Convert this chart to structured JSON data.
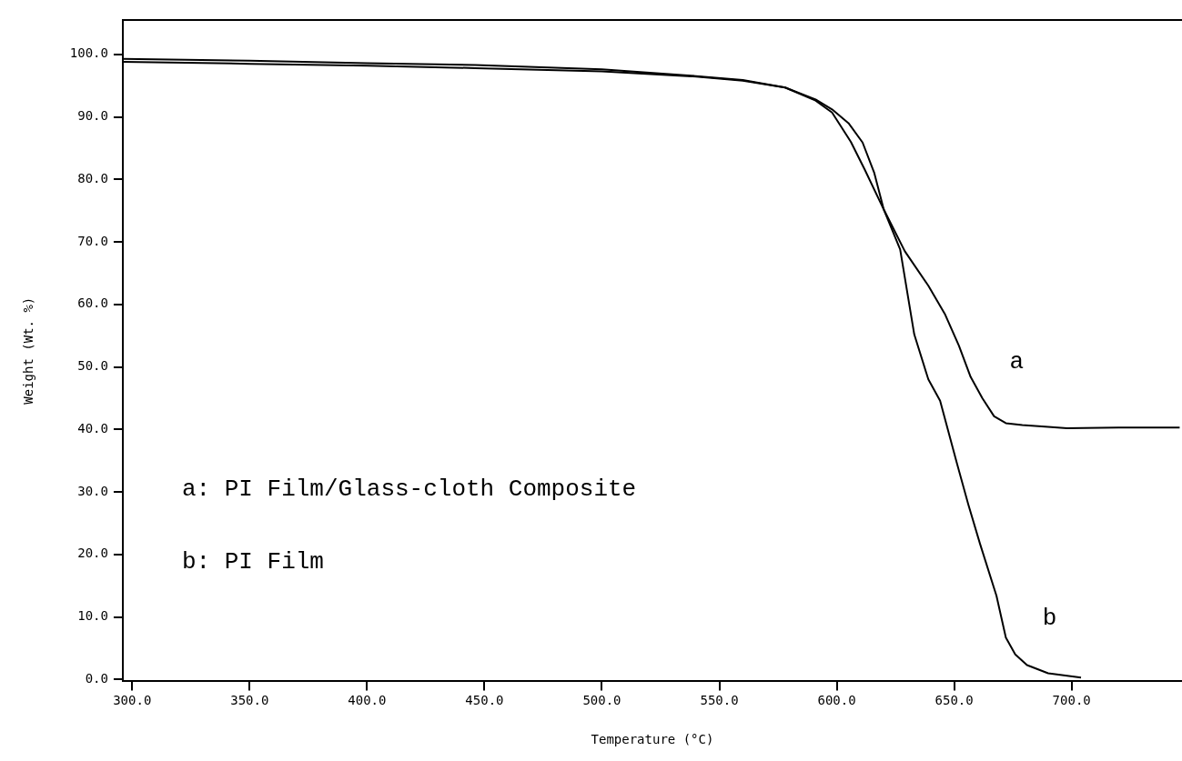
{
  "chart_data": {
    "type": "line",
    "xlabel": "Temperature (°C)",
    "ylabel": "Weight (Wt. %)",
    "xlim": [
      296,
      747
    ],
    "ylim": [
      -0.3,
      105.5
    ],
    "xticks": [
      {
        "value": 300,
        "label": "300.0"
      },
      {
        "value": 350,
        "label": "350.0"
      },
      {
        "value": 400,
        "label": "400.0"
      },
      {
        "value": 450,
        "label": "450.0"
      },
      {
        "value": 500,
        "label": "500.0"
      },
      {
        "value": 550,
        "label": "550.0"
      },
      {
        "value": 600,
        "label": "600.0"
      },
      {
        "value": 650,
        "label": "650.0"
      },
      {
        "value": 700,
        "label": "700.0"
      }
    ],
    "yticks": [
      {
        "value": 0,
        "label": "0.0"
      },
      {
        "value": 10,
        "label": "10.0"
      },
      {
        "value": 20,
        "label": "20.0"
      },
      {
        "value": 30,
        "label": "30.0"
      },
      {
        "value": 40,
        "label": "40.0"
      },
      {
        "value": 50,
        "label": "50.0"
      },
      {
        "value": 60,
        "label": "60.0"
      },
      {
        "value": 70,
        "label": "70.0"
      },
      {
        "value": 80,
        "label": "80.0"
      },
      {
        "value": 90,
        "label": "90.0"
      },
      {
        "value": 100,
        "label": "100.0"
      }
    ],
    "grid": false,
    "legend": false,
    "marker": "none",
    "line_style": "solid",
    "series": [
      {
        "name": "a",
        "color": "#000000",
        "x": [
          296,
          350,
          400,
          446,
          500,
          538,
          560,
          578,
          591,
          598,
          606,
          612,
          620,
          629,
          639,
          646,
          652,
          657,
          662,
          667,
          672,
          679,
          690,
          698,
          720,
          746
        ],
        "values": [
          99.3,
          99.0,
          98.6,
          98.3,
          97.6,
          96.6,
          95.9,
          94.7,
          92.6,
          90.7,
          86,
          81.5,
          75.2,
          68.5,
          63.0,
          58.5,
          53.4,
          48.4,
          45.0,
          42.1,
          41.0,
          40.7,
          40.4,
          40.2,
          40.3,
          40.3
        ]
      },
      {
        "name": "b",
        "color": "#000000",
        "x": [
          296,
          350,
          400,
          446,
          500,
          538,
          560,
          578,
          591,
          598,
          605,
          611,
          616,
          620,
          627,
          633,
          639,
          644,
          651,
          656,
          661,
          668,
          672,
          676,
          681,
          690,
          704
        ],
        "values": [
          98.8,
          98.5,
          98.2,
          97.8,
          97.3,
          96.5,
          95.8,
          94.7,
          92.8,
          91.2,
          89,
          85.9,
          81.0,
          75.2,
          68.8,
          55.2,
          48,
          44.6,
          34.8,
          28,
          21.7,
          13.4,
          6.7,
          4.0,
          2.3,
          1.0,
          0.3
        ]
      }
    ],
    "annotations": [
      "a: PI Film/Glass-cloth Composite",
      "b: PI Film"
    ]
  }
}
